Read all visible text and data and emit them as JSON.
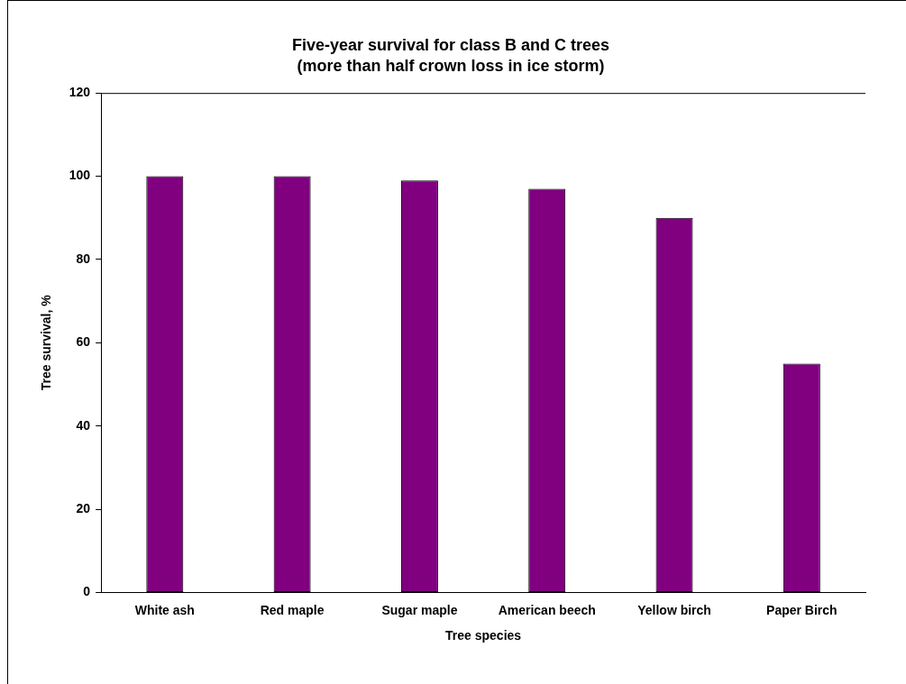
{
  "chart_data": {
    "type": "bar",
    "title": "Five-year survival for class B and C trees",
    "subtitle": "(more than half crown loss in ice storm)",
    "xlabel": "Tree species",
    "ylabel": "Tree survival, %",
    "categories": [
      "White ash",
      "Red maple",
      "Sugar maple",
      "American beech",
      "Yellow birch",
      "Paper Birch"
    ],
    "values": [
      100,
      100,
      99,
      97,
      90,
      55
    ],
    "color": "#800080",
    "ylim": [
      0,
      120
    ],
    "yticks": [
      0,
      20,
      40,
      60,
      80,
      100,
      120
    ],
    "grid": false,
    "legend": false
  }
}
